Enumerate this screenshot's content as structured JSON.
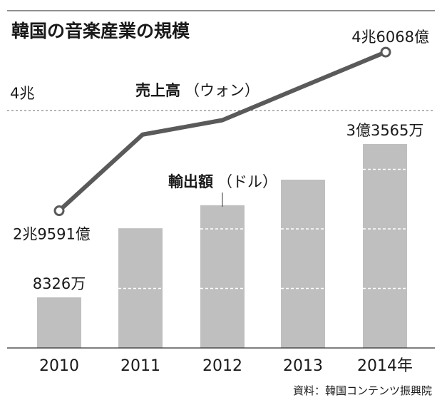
{
  "title": "韓国の音楽産業の規模",
  "source": "資料：韓国コンテンツ振興院",
  "chart_data": [
    {
      "type": "bar",
      "label": "輸出額",
      "unit_label": "（ドル）",
      "categories": [
        "2010",
        "2011",
        "2012",
        "2013",
        "2014年"
      ],
      "values": [
        83260000,
        197000000,
        235000000,
        277000000,
        335650000
      ],
      "value_labels": [
        "8326万",
        "",
        "",
        "",
        "3億3565万"
      ],
      "colors": {
        "bar": "#bfbfbf",
        "bar_grid": "#ffffff"
      }
    },
    {
      "type": "line",
      "label": "売上高",
      "unit_label": "（ウォン）",
      "x": [
        "2010",
        "2011",
        "2012",
        "2013",
        "2014年"
      ],
      "values": [
        2.9591,
        3.75,
        3.9,
        4.25,
        4.6068
      ],
      "value_labels": [
        "2兆9591億",
        "",
        "",
        "",
        "4兆6068億"
      ],
      "reference_line": {
        "value": 4.0,
        "label": "4兆"
      },
      "colors": {
        "line": "#5a5a5a"
      }
    }
  ]
}
